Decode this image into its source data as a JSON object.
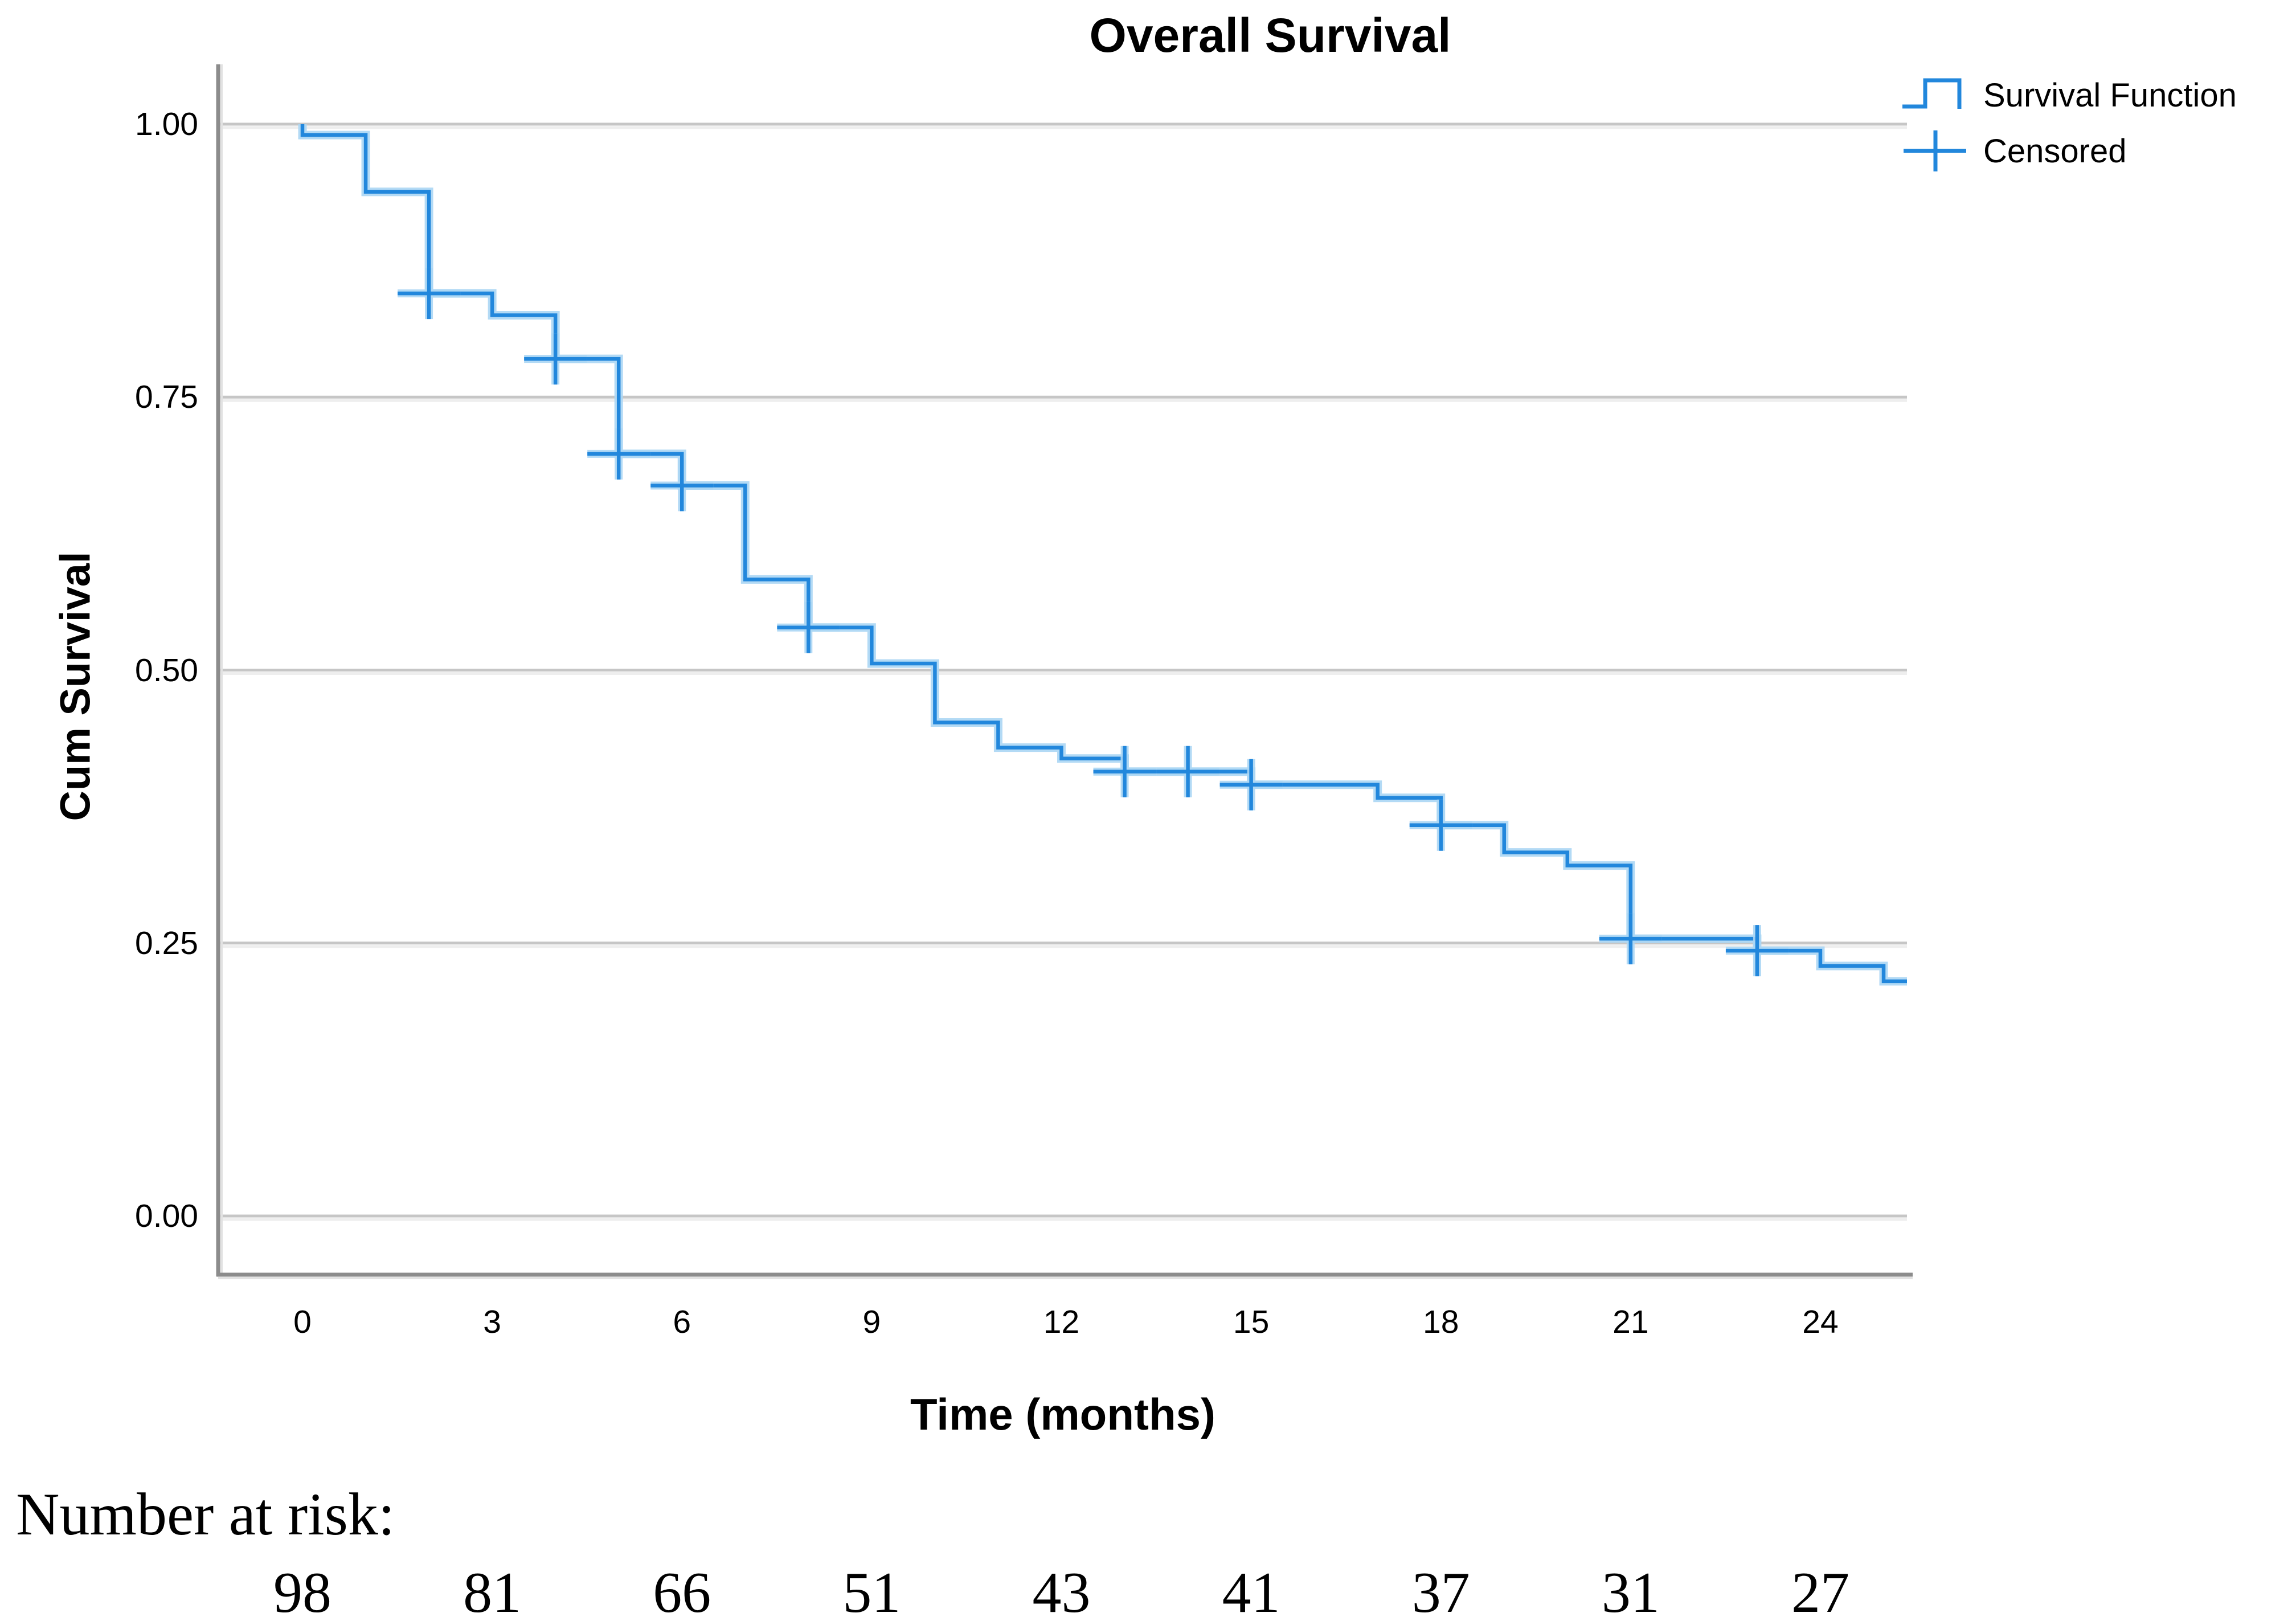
{
  "colors": {
    "curve": "#2287dc",
    "curve_halo": "#abd6f4",
    "gridline": "#c6c6c6",
    "gridline_echo": "#eeeeee",
    "axis": "#8c8c8c",
    "axis_echo": "#e2e2e2",
    "text": "#000000"
  },
  "legend": {
    "items": [
      {
        "label": "Survival Function",
        "symbol": "step-line"
      },
      {
        "label": "Censored",
        "symbol": "plus"
      }
    ]
  },
  "risk_table": {
    "label": "Number at risk:",
    "times": [
      0,
      3,
      6,
      9,
      12,
      15,
      18,
      21,
      24
    ],
    "values": [
      "98",
      "81",
      "66",
      "51",
      "43",
      "41",
      "37",
      "31",
      "27"
    ]
  },
  "chart_data": {
    "type": "line",
    "subtype": "kaplan-meier-step",
    "title": "Overall Survival",
    "xlabel": "Time (months)",
    "ylabel": "Cum Survival",
    "xlim": [
      -1.3,
      25.4
    ],
    "ylim": [
      -0.054,
      1.055
    ],
    "x_ticks": [
      0,
      3,
      6,
      9,
      12,
      15,
      18,
      21,
      24
    ],
    "x_tick_labels": [
      "0",
      "3",
      "6",
      "9",
      "12",
      "15",
      "18",
      "21",
      "24"
    ],
    "y_ticks": [
      1.0,
      0.75,
      0.5,
      0.25,
      0.0
    ],
    "y_tick_labels": [
      "1.00",
      "0.75",
      "0.50",
      "0.25",
      "0.00"
    ],
    "grid": "horizontal",
    "legend_position": "top-right-outside",
    "series": [
      {
        "name": "Survival Function",
        "start": [
          0,
          1.0
        ],
        "steps": [
          [
            0,
            0.99
          ],
          [
            1,
            0.938
          ],
          [
            2,
            0.845
          ],
          [
            3,
            0.825
          ],
          [
            4,
            0.785
          ],
          [
            5,
            0.698
          ],
          [
            6,
            0.669
          ],
          [
            7,
            0.583
          ],
          [
            8,
            0.539
          ],
          [
            9,
            0.506
          ],
          [
            10,
            0.452
          ],
          [
            11,
            0.429
          ],
          [
            12,
            0.419
          ],
          [
            13,
            0.407
          ],
          [
            15,
            0.395
          ],
          [
            17,
            0.383
          ],
          [
            18,
            0.358
          ],
          [
            19,
            0.333
          ],
          [
            20,
            0.321
          ],
          [
            21,
            0.254
          ],
          [
            23,
            0.243
          ],
          [
            24,
            0.229
          ],
          [
            25,
            0.215
          ]
        ],
        "curve_end_time": 25.4,
        "censored_marks": [
          [
            2,
            0.845
          ],
          [
            4,
            0.785
          ],
          [
            5,
            0.698
          ],
          [
            6,
            0.669
          ],
          [
            8,
            0.539
          ],
          [
            13,
            0.407
          ],
          [
            14,
            0.407
          ],
          [
            15,
            0.395
          ],
          [
            18,
            0.358
          ],
          [
            21,
            0.254
          ],
          [
            23,
            0.243
          ]
        ]
      }
    ]
  }
}
